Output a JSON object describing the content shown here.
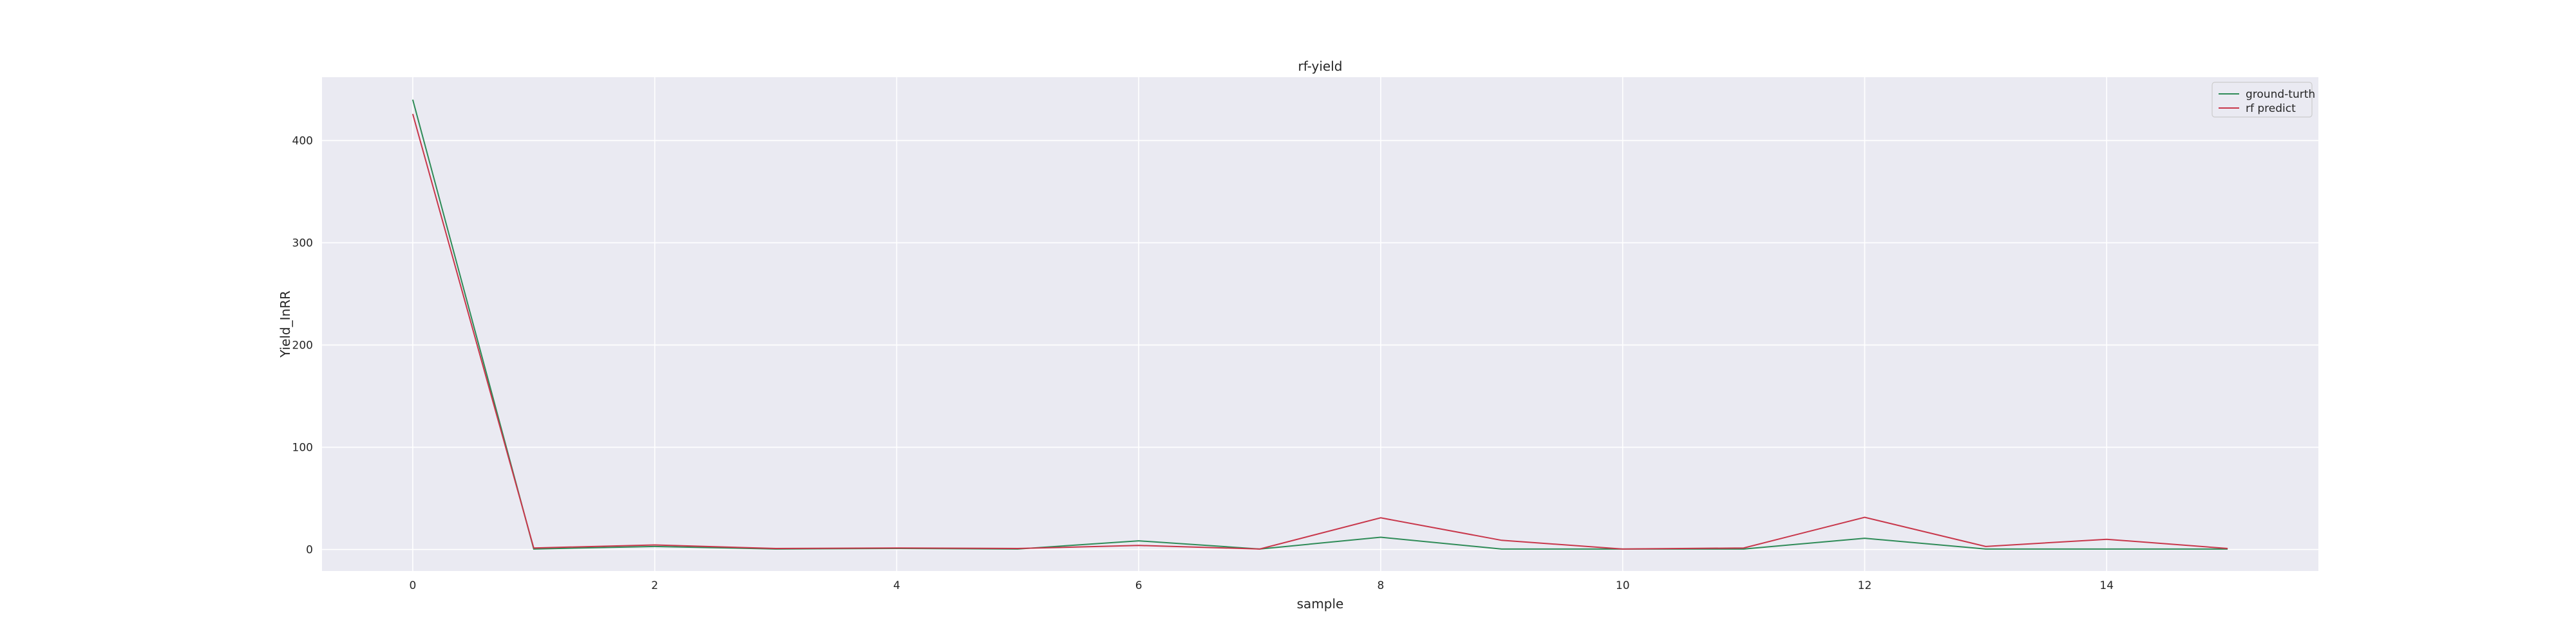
{
  "chart_data": {
    "type": "line",
    "title": "rf-yield",
    "xlabel": "sample",
    "ylabel": "Yield_InRR",
    "x": [
      0,
      1,
      2,
      3,
      4,
      5,
      6,
      7,
      8,
      9,
      10,
      11,
      12,
      13,
      14,
      15
    ],
    "xticks": [
      0,
      2,
      4,
      6,
      8,
      10,
      12,
      14
    ],
    "yticks": [
      0,
      100,
      200,
      300,
      400
    ],
    "xlim": [
      -0.75,
      15.75
    ],
    "ylim": [
      -21,
      462
    ],
    "grid": true,
    "legend_position": "top-right",
    "series": [
      {
        "name": "ground-turth",
        "color": "#2e8b57",
        "values": [
          440,
          0.5,
          3,
          0.5,
          1,
          0.5,
          8.5,
          0.5,
          12,
          0.5,
          0.5,
          0.5,
          11,
          0.5,
          0.5,
          0.5
        ]
      },
      {
        "name": "rf predict",
        "color": "#c8374b",
        "values": [
          426,
          1.5,
          4.5,
          1,
          1.5,
          1,
          4,
          0.5,
          31,
          9,
          0.5,
          1.5,
          31.5,
          3,
          10,
          1
        ]
      }
    ]
  }
}
